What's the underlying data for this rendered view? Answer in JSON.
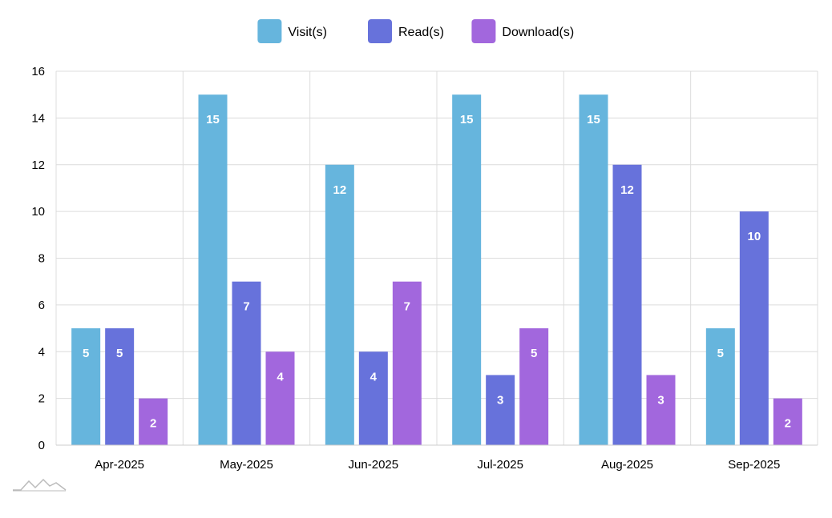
{
  "chart_data": {
    "type": "bar",
    "title": "",
    "xlabel": "",
    "ylabel": "",
    "categories": [
      "Apr-2025",
      "May-2025",
      "Jun-2025",
      "Jul-2025",
      "Aug-2025",
      "Sep-2025"
    ],
    "series": [
      {
        "name": "Visit(s)",
        "color": "#66B5DD",
        "values": [
          5,
          15,
          12,
          15,
          15,
          5
        ]
      },
      {
        "name": "Read(s)",
        "color": "#6772DB",
        "values": [
          5,
          7,
          4,
          3,
          12,
          10
        ]
      },
      {
        "name": "Download(s)",
        "color": "#A267DD",
        "values": [
          2,
          4,
          7,
          5,
          3,
          2
        ]
      }
    ],
    "ylim": [
      0,
      16
    ],
    "yticks": [
      0,
      2,
      4,
      6,
      8,
      10,
      12,
      14,
      16
    ],
    "grid": true,
    "legend_position": "top-center",
    "data_labels": true
  }
}
